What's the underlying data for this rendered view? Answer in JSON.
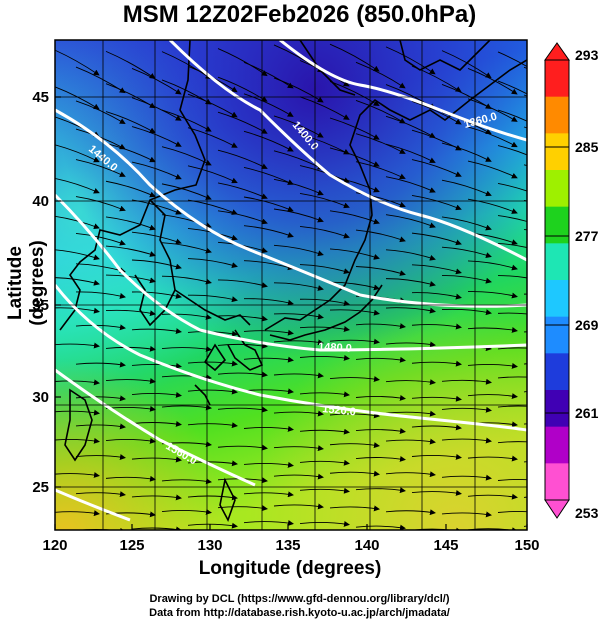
{
  "title": "MSM 12Z02Feb2026 (850.0hPa)",
  "axes": {
    "xlabel": "Longitude (degrees)",
    "ylabel": "Latitude  (degrees)",
    "xticks": [
      "120",
      "125",
      "130",
      "135",
      "140",
      "145",
      "150"
    ],
    "yticks": [
      "45",
      "40",
      "35",
      "30",
      "25"
    ]
  },
  "colorbar": {
    "labels": [
      "293",
      "285",
      "277",
      "269",
      "261",
      "253"
    ],
    "colors": [
      "#ff1e1e",
      "#ff8a00",
      "#ffd000",
      "#9ef000",
      "#1ed21e",
      "#1ee6b4",
      "#1ec8ff",
      "#1e8cff",
      "#1e3cdc",
      "#4000b4",
      "#b000c8",
      "#ff50d2"
    ]
  },
  "contours": {
    "labels": [
      "1360.0",
      "1400.0",
      "1440.0",
      "1480.0",
      "1520.0",
      "1560.0"
    ]
  },
  "credits": {
    "line1": "Drawing by DCL (https://www.gfd-dennou.org/library/dcl/)",
    "line2": "Data from http://database.rish.kyoto-u.ac.jp/arch/jmadata/"
  }
}
